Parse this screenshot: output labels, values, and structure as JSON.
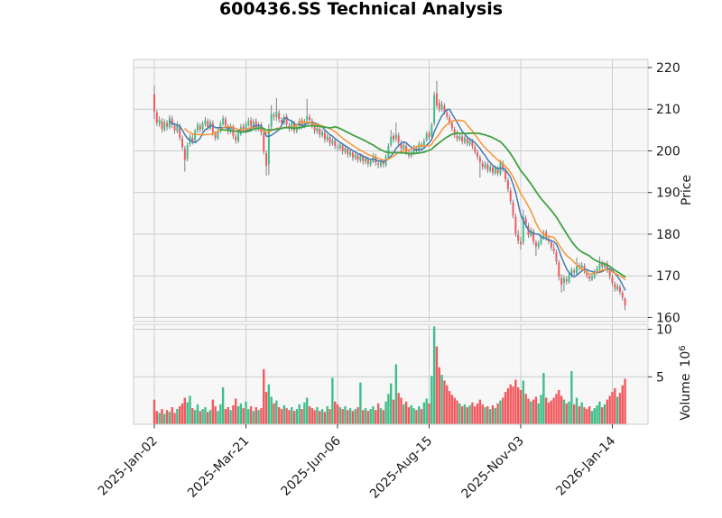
{
  "title": "600436.SS Technical Analysis",
  "colors": {
    "background": "#ffffff",
    "panel_bg": "#f7f7f7",
    "grid": "#cccccc",
    "spine": "#cccccc",
    "up": "#3fbe8a",
    "down": "#f15a5f",
    "wick": "#757575",
    "tick": "#333333",
    "text": "#1a1a1a"
  },
  "chart_data": {
    "type": "candlestick+volume",
    "title": "600436.SS Technical Analysis",
    "x_tick_labels": [
      "2025-Jan-02",
      "2025-Mar-21",
      "2025-Jun-06",
      "2025-Aug-15",
      "2025-Nov-03",
      "2026-Jan-14"
    ],
    "x_tick_indices": [
      0,
      36,
      72,
      108,
      144,
      180
    ],
    "price_axis": {
      "label": "Price",
      "ticks": [
        160,
        170,
        180,
        190,
        200,
        210,
        220
      ],
      "range": [
        158.9,
        222.0
      ],
      "side": "right"
    },
    "volume_axis": {
      "label": "Volume",
      "unit_base": "10",
      "unit_exponent": "6",
      "ticks": [
        5,
        10
      ],
      "range": [
        0,
        10.5
      ],
      "side": "right"
    },
    "moving_averages": [
      {
        "name": "short",
        "window": 7,
        "color": "#4379b7",
        "width": 1.5
      },
      {
        "name": "mid",
        "window": 13,
        "color": "#f79433",
        "width": 1.5
      },
      {
        "name": "long",
        "window": 27,
        "color": "#40a144",
        "width": 1.8
      }
    ],
    "candle_columns": [
      "open",
      "high",
      "low",
      "close",
      "volume_millions"
    ],
    "candles": [
      [
        213.6,
        215.7,
        207.6,
        209.5,
        2.6
      ],
      [
        209.2,
        209.8,
        205.9,
        206.8,
        1.4
      ],
      [
        206.5,
        208.3,
        205.8,
        207.5,
        1.2
      ],
      [
        207.2,
        207.8,
        204.4,
        205.2,
        1.6
      ],
      [
        205.0,
        207.6,
        204.6,
        206.9,
        1.1
      ],
      [
        206.7,
        207.4,
        204.9,
        205.8,
        1.5
      ],
      [
        205.6,
        208.6,
        205.2,
        207.9,
        1.3
      ],
      [
        207.7,
        208.4,
        205.5,
        206.2,
        1.8
      ],
      [
        206.0,
        206.8,
        204.1,
        204.9,
        1.2
      ],
      [
        204.7,
        207.1,
        204.2,
        206.4,
        1.6
      ],
      [
        206.1,
        206.6,
        202.5,
        203.2,
        1.9
      ],
      [
        203.0,
        203.7,
        200.2,
        200.9,
        2.2
      ],
      [
        200.5,
        201.2,
        195.0,
        197.8,
        2.8
      ],
      [
        198.1,
        202.0,
        197.5,
        201.4,
        2.3
      ],
      [
        201.6,
        204.0,
        201.0,
        203.4,
        3.0
      ],
      [
        203.2,
        203.9,
        201.5,
        202.2,
        1.7
      ],
      [
        202.4,
        205.3,
        202.0,
        204.8,
        1.5
      ],
      [
        204.9,
        206.9,
        204.3,
        206.3,
        2.1
      ],
      [
        206.1,
        206.7,
        204.4,
        205.1,
        1.4
      ],
      [
        205.2,
        207.2,
        204.7,
        206.6,
        1.6
      ],
      [
        206.4,
        208.1,
        205.8,
        207.4,
        1.8
      ],
      [
        207.2,
        207.8,
        204.9,
        205.6,
        1.3
      ],
      [
        205.4,
        207.5,
        205.0,
        206.9,
        1.5
      ],
      [
        206.7,
        207.3,
        203.6,
        204.3,
        2.6
      ],
      [
        204.1,
        204.8,
        202.4,
        203.1,
        1.9
      ],
      [
        203.0,
        205.4,
        202.6,
        204.9,
        1.4
      ],
      [
        204.7,
        207.2,
        204.3,
        206.6,
        2.1
      ],
      [
        206.4,
        208.5,
        206.0,
        207.8,
        3.9
      ],
      [
        207.6,
        208.2,
        205.4,
        206.1,
        1.6
      ],
      [
        205.9,
        206.5,
        203.9,
        204.7,
        1.8
      ],
      [
        204.5,
        206.6,
        204.1,
        205.9,
        1.5
      ],
      [
        205.7,
        206.3,
        202.9,
        203.6,
        2.0
      ],
      [
        203.4,
        204.1,
        201.7,
        202.5,
        2.7
      ],
      [
        202.3,
        204.9,
        201.9,
        204.2,
        1.9
      ],
      [
        204.0,
        206.4,
        203.6,
        205.7,
        2.2
      ],
      [
        205.9,
        206.6,
        204.3,
        205.1,
        1.7
      ],
      [
        205.3,
        207.1,
        204.8,
        206.4,
        2.4
      ],
      [
        206.2,
        208.0,
        205.8,
        207.2,
        1.6
      ],
      [
        207.4,
        208.1,
        205.1,
        205.8,
        1.9
      ],
      [
        205.6,
        207.7,
        205.2,
        207.0,
        1.4
      ],
      [
        207.1,
        207.8,
        204.6,
        205.3,
        1.8
      ],
      [
        205.1,
        206.9,
        204.7,
        206.1,
        1.5
      ],
      [
        206.3,
        206.9,
        203.7,
        204.4,
        1.7
      ],
      [
        204.2,
        204.8,
        199.1,
        199.8,
        5.8
      ],
      [
        199.4,
        200.1,
        194.0,
        196.4,
        3.4
      ],
      [
        196.8,
        206.4,
        194.2,
        205.3,
        4.2
      ],
      [
        205.8,
        211.0,
        204.9,
        208.9,
        2.9
      ],
      [
        208.6,
        209.3,
        207.3,
        208.2,
        2.2
      ],
      [
        208.0,
        212.7,
        207.2,
        209.4,
        2.5
      ],
      [
        209.1,
        209.8,
        206.8,
        207.6,
        1.8
      ],
      [
        207.4,
        208.1,
        206.0,
        206.8,
        1.6
      ],
      [
        206.6,
        208.8,
        206.2,
        208.1,
        2.0
      ],
      [
        208.3,
        208.9,
        205.5,
        206.3,
        1.7
      ],
      [
        206.1,
        206.7,
        204.6,
        205.4,
        1.5
      ],
      [
        205.2,
        207.4,
        204.8,
        206.8,
        1.8
      ],
      [
        206.6,
        207.2,
        204.1,
        204.9,
        1.4
      ],
      [
        204.7,
        206.3,
        204.2,
        205.7,
        1.6
      ],
      [
        205.5,
        207.8,
        205.1,
        207.2,
        2.1
      ],
      [
        207.4,
        208.0,
        205.2,
        206.0,
        1.6
      ],
      [
        205.8,
        207.7,
        205.4,
        207.1,
        2.3
      ],
      [
        207.3,
        212.5,
        206.5,
        208.3,
        2.8
      ],
      [
        208.1,
        208.8,
        206.6,
        207.4,
        1.9
      ],
      [
        207.2,
        207.8,
        205.4,
        206.2,
        1.7
      ],
      [
        206.0,
        206.6,
        204.0,
        204.8,
        1.5
      ],
      [
        204.6,
        206.1,
        204.1,
        205.5,
        1.8
      ],
      [
        205.3,
        205.9,
        203.1,
        203.9,
        1.4
      ],
      [
        203.7,
        205.2,
        203.2,
        204.6,
        1.6
      ],
      [
        204.4,
        205.0,
        202.0,
        202.8,
        1.3
      ],
      [
        202.6,
        204.1,
        202.1,
        203.5,
        1.9
      ],
      [
        203.3,
        203.9,
        201.1,
        201.9,
        1.6
      ],
      [
        201.7,
        203.2,
        201.2,
        202.6,
        4.9
      ],
      [
        202.4,
        203.0,
        200.4,
        201.2,
        2.4
      ],
      [
        201.0,
        201.7,
        199.9,
        200.8,
        2.1
      ],
      [
        200.6,
        202.1,
        200.1,
        201.5,
        1.8
      ],
      [
        201.3,
        201.9,
        199.1,
        199.9,
        1.6
      ],
      [
        199.7,
        201.3,
        199.2,
        200.7,
        1.9
      ],
      [
        200.5,
        201.1,
        198.4,
        199.2,
        1.5
      ],
      [
        199.0,
        200.4,
        198.5,
        199.8,
        1.7
      ],
      [
        199.6,
        200.2,
        197.6,
        198.4,
        1.4
      ],
      [
        198.2,
        199.7,
        197.7,
        199.1,
        1.6
      ],
      [
        198.9,
        199.5,
        197.1,
        197.9,
        1.8
      ],
      [
        197.7,
        199.4,
        197.2,
        198.8,
        4.4
      ],
      [
        198.6,
        199.2,
        196.7,
        197.5,
        1.5
      ],
      [
        197.3,
        198.8,
        196.8,
        198.2,
        1.7
      ],
      [
        198.0,
        198.6,
        196.1,
        196.9,
        1.4
      ],
      [
        196.7,
        198.2,
        196.2,
        197.6,
        1.6
      ],
      [
        197.4,
        199.5,
        197.0,
        198.9,
        1.9
      ],
      [
        198.7,
        199.3,
        196.4,
        197.2,
        1.5
      ],
      [
        197.0,
        197.6,
        195.8,
        196.6,
        2.2
      ],
      [
        196.4,
        198.0,
        195.9,
        197.4,
        1.7
      ],
      [
        197.2,
        197.8,
        196.0,
        196.8,
        1.5
      ],
      [
        196.6,
        199.2,
        196.1,
        198.6,
        2.4
      ],
      [
        198.4,
        201.8,
        198.0,
        201.2,
        3.2
      ],
      [
        201.4,
        205.0,
        200.9,
        203.4,
        4.3
      ],
      [
        203.6,
        204.3,
        202.0,
        202.7,
        2.6
      ],
      [
        202.9,
        206.8,
        202.2,
        203.9,
        6.3
      ],
      [
        203.7,
        204.4,
        201.4,
        202.1,
        3.3
      ],
      [
        201.9,
        202.6,
        199.9,
        200.6,
        2.8
      ],
      [
        200.4,
        202.0,
        200.0,
        201.4,
        2.1
      ],
      [
        201.2,
        201.8,
        199.0,
        199.7,
        2.4
      ],
      [
        199.5,
        200.1,
        198.2,
        198.9,
        1.8
      ],
      [
        198.7,
        200.2,
        198.3,
        199.6,
        2.0
      ],
      [
        199.4,
        201.4,
        199.0,
        200.8,
        1.7
      ],
      [
        200.6,
        201.2,
        199.4,
        200.1,
        1.5
      ],
      [
        199.9,
        202.3,
        199.5,
        201.7,
        1.9
      ],
      [
        201.5,
        202.1,
        200.3,
        201.0,
        1.6
      ],
      [
        200.8,
        203.0,
        200.4,
        202.4,
        2.3
      ],
      [
        202.6,
        204.7,
        202.2,
        204.1,
        2.7
      ],
      [
        204.3,
        204.9,
        202.6,
        203.3,
        2.2
      ],
      [
        203.5,
        206.8,
        203.1,
        206.2,
        5.1
      ],
      [
        206.6,
        214.2,
        206.0,
        213.4,
        10.3
      ],
      [
        213.8,
        216.8,
        210.2,
        210.9,
        8.2
      ],
      [
        211.5,
        212.4,
        209.3,
        210.1,
        6.0
      ],
      [
        210.0,
        212.0,
        209.4,
        211.2,
        5.2
      ],
      [
        210.8,
        211.5,
        208.7,
        209.4,
        4.6
      ],
      [
        209.2,
        209.9,
        207.5,
        208.2,
        4.1
      ],
      [
        208.0,
        208.7,
        206.2,
        206.9,
        3.5
      ],
      [
        206.7,
        207.3,
        204.7,
        205.4,
        3.1
      ],
      [
        205.2,
        205.8,
        203.1,
        203.8,
        2.8
      ],
      [
        203.6,
        204.9,
        202.2,
        202.9,
        2.5
      ],
      [
        202.7,
        204.2,
        202.3,
        203.6,
        2.2
      ],
      [
        203.4,
        204.0,
        201.5,
        202.2,
        1.9
      ],
      [
        202.0,
        203.6,
        201.6,
        203.1,
        2.1
      ],
      [
        202.9,
        203.5,
        201.1,
        201.8,
        1.8
      ],
      [
        201.6,
        203.1,
        201.2,
        202.5,
        2.0
      ],
      [
        202.3,
        202.9,
        200.4,
        201.1,
        2.3
      ],
      [
        200.9,
        201.5,
        199.1,
        199.8,
        1.9
      ],
      [
        199.6,
        200.3,
        197.9,
        198.6,
        2.2
      ],
      [
        198.4,
        199.0,
        193.6,
        197.3,
        2.6
      ],
      [
        197.1,
        197.7,
        195.4,
        196.1,
        2.1
      ],
      [
        195.9,
        197.5,
        195.5,
        196.9,
        1.8
      ],
      [
        196.7,
        197.3,
        194.7,
        195.4,
        1.9
      ],
      [
        195.2,
        196.8,
        194.8,
        196.2,
        1.6
      ],
      [
        196.0,
        196.6,
        194.1,
        194.8,
        2.0
      ],
      [
        194.6,
        196.5,
        194.2,
        195.9,
        1.7
      ],
      [
        195.7,
        196.3,
        193.9,
        194.6,
        2.2
      ],
      [
        194.4,
        197.9,
        194.0,
        197.3,
        2.5
      ],
      [
        197.0,
        197.7,
        195.0,
        195.7,
        2.8
      ],
      [
        195.4,
        196.0,
        192.5,
        193.2,
        3.4
      ],
      [
        192.9,
        193.6,
        190.1,
        190.8,
        3.8
      ],
      [
        190.5,
        191.2,
        187.2,
        187.9,
        4.2
      ],
      [
        187.6,
        188.3,
        183.8,
        184.5,
        4.0
      ],
      [
        184.2,
        184.9,
        179.4,
        180.1,
        4.7
      ],
      [
        179.8,
        181.0,
        177.6,
        178.4,
        3.9
      ],
      [
        178.2,
        179.4,
        176.3,
        177.6,
        3.6
      ],
      [
        178.0,
        185.9,
        177.4,
        184.1,
        4.6
      ],
      [
        183.8,
        184.5,
        181.6,
        182.3,
        3.2
      ],
      [
        182.0,
        182.7,
        179.1,
        179.8,
        2.7
      ],
      [
        179.6,
        181.6,
        179.2,
        180.9,
        2.4
      ],
      [
        180.7,
        181.3,
        177.5,
        178.2,
        2.6
      ],
      [
        178.0,
        178.6,
        174.8,
        177.1,
        2.9
      ],
      [
        176.9,
        178.5,
        176.4,
        177.9,
        2.2
      ],
      [
        177.7,
        179.9,
        177.3,
        179.4,
        3.1
      ],
      [
        179.2,
        181.0,
        178.7,
        180.3,
        5.4
      ],
      [
        180.5,
        181.1,
        178.4,
        179.1,
        2.8
      ],
      [
        178.9,
        179.5,
        177.6,
        178.3,
        2.3
      ],
      [
        178.1,
        178.7,
        176.1,
        176.8,
        2.5
      ],
      [
        176.6,
        177.8,
        175.2,
        175.9,
        2.8
      ],
      [
        175.7,
        176.3,
        172.7,
        173.4,
        3.2
      ],
      [
        173.2,
        173.8,
        168.9,
        169.8,
        3.6
      ],
      [
        169.5,
        170.4,
        166.0,
        167.9,
        3.0
      ],
      [
        168.2,
        170.1,
        166.3,
        169.4,
        2.6
      ],
      [
        169.2,
        169.8,
        167.9,
        168.7,
        2.2
      ],
      [
        168.5,
        170.8,
        168.1,
        170.2,
        2.4
      ],
      [
        170.0,
        172.1,
        169.6,
        171.5,
        5.6
      ],
      [
        171.3,
        171.9,
        170.1,
        170.8,
        2.1
      ],
      [
        170.6,
        174.4,
        170.2,
        172.3,
        2.8
      ],
      [
        172.5,
        173.1,
        171.2,
        171.9,
        1.9
      ],
      [
        171.7,
        173.3,
        171.3,
        172.6,
        2.3
      ],
      [
        172.4,
        173.0,
        170.5,
        171.2,
        1.8
      ],
      [
        171.0,
        171.6,
        169.4,
        170.1,
        1.6
      ],
      [
        169.9,
        170.5,
        168.6,
        169.3,
        1.9
      ],
      [
        169.1,
        170.4,
        168.7,
        169.8,
        1.4
      ],
      [
        169.6,
        171.5,
        169.2,
        170.9,
        1.7
      ],
      [
        170.7,
        172.4,
        170.3,
        171.8,
        2.0
      ],
      [
        171.6,
        174.6,
        171.2,
        172.9,
        2.4
      ],
      [
        173.1,
        173.7,
        171.5,
        172.2,
        1.8
      ],
      [
        172.0,
        173.4,
        171.6,
        172.8,
        2.1
      ],
      [
        173.0,
        173.6,
        170.7,
        171.4,
        2.6
      ],
      [
        171.2,
        171.8,
        169.2,
        169.9,
        3.0
      ],
      [
        169.7,
        170.3,
        167.5,
        168.2,
        3.4
      ],
      [
        168.0,
        168.6,
        166.2,
        166.9,
        3.8
      ],
      [
        166.7,
        168.2,
        166.3,
        167.5,
        2.9
      ],
      [
        167.3,
        167.9,
        165.4,
        166.1,
        3.3
      ],
      [
        165.9,
        166.5,
        164.1,
        164.8,
        4.1
      ],
      [
        164.5,
        164.9,
        161.7,
        162.9,
        4.8
      ]
    ]
  }
}
